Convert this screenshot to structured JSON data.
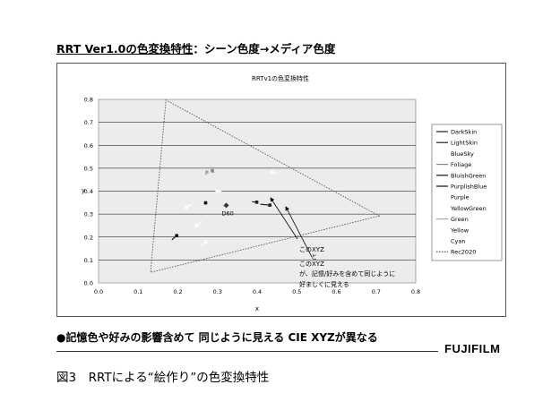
{
  "slide": {
    "title_underlined": "RRT Ver1.0の色変換特性",
    "title_rest": "：シーン色度→メディア色度",
    "bottom_note": "●記憶色や好みの影響含めて 同じように見える CIE XYZが異なる",
    "brand": "FUJIFILM",
    "caption": "図3　RRTによる“絵作り”の色変換特性"
  },
  "chart_data": {
    "type": "scatter",
    "title": "RRTv1の色変換特性",
    "xlabel": "x",
    "ylabel": "y",
    "xlim": [
      0.0,
      0.8
    ],
    "ylim": [
      0.0,
      0.8
    ],
    "xticks": [
      "0.0",
      "0.1",
      "0.2",
      "0.3",
      "0.4",
      "0.5",
      "0.6",
      "0.7",
      "0.8"
    ],
    "yticks": [
      "0.0",
      "0.1",
      "0.2",
      "0.3",
      "0.4",
      "0.5",
      "0.6",
      "0.7",
      "0.8"
    ],
    "grid": true,
    "plot_background": "#ececec",
    "legend_position": "right",
    "series": [
      {
        "name": "DarkSkin",
        "color": "#222222",
        "points": [
          [
            0.399,
            0.352
          ],
          [
            0.387,
            0.354
          ]
        ]
      },
      {
        "name": "LightSkin",
        "color": "#222222",
        "points": [
          [
            0.432,
            0.339
          ],
          [
            0.408,
            0.343
          ]
        ]
      },
      {
        "name": "BlueSky",
        "color": "#ffffff",
        "points": [
          [
            0.247,
            0.25
          ],
          [
            0.26,
            0.27
          ]
        ]
      },
      {
        "name": "Foliage",
        "color": "#888888",
        "points": [
          [
            0.287,
            0.489
          ],
          [
            0.29,
            0.48
          ]
        ]
      },
      {
        "name": "BluishGreen",
        "color": "#111111",
        "points": [
          [
            0.197,
            0.206
          ],
          [
            0.185,
            0.188
          ]
        ]
      },
      {
        "name": "PurplishBlue",
        "color": "#111111",
        "points": [
          [
            0.27,
            0.349
          ],
          [
            0.27,
            0.349
          ]
        ]
      },
      {
        "name": "Purple",
        "color": "#ffffff",
        "points": [
          [
            0.299,
            0.4
          ],
          [
            0.31,
            0.4
          ]
        ]
      },
      {
        "name": "YellowGreen",
        "color": "#ffffff",
        "points": [
          [
            0.27,
            0.178
          ],
          [
            0.26,
            0.165
          ]
        ]
      },
      {
        "name": "Green",
        "color": "#aaaaaa",
        "points": [
          [
            0.273,
            0.483
          ],
          [
            0.27,
            0.47
          ]
        ]
      },
      {
        "name": "Yellow",
        "color": "#ffffff",
        "points": [
          [
            0.437,
            0.483
          ],
          [
            0.45,
            0.475
          ]
        ]
      },
      {
        "name": "Cyan",
        "color": "#ffffff",
        "points": [
          [
            0.222,
            0.33
          ],
          [
            0.235,
            0.345
          ]
        ]
      }
    ],
    "gamut": {
      "name": "Rec2020",
      "points": [
        [
          0.708,
          0.292
        ],
        [
          0.17,
          0.797
        ],
        [
          0.131,
          0.046
        ]
      ]
    },
    "white_point": {
      "label": "D60",
      "x": 0.322,
      "y": 0.338
    },
    "annotations": {
      "line1": "このXYZ",
      "line2": "と",
      "line3": "このXYZ",
      "line4": "が、記憶/好みを含めて同じように",
      "line5": "好ましくに見える"
    }
  }
}
